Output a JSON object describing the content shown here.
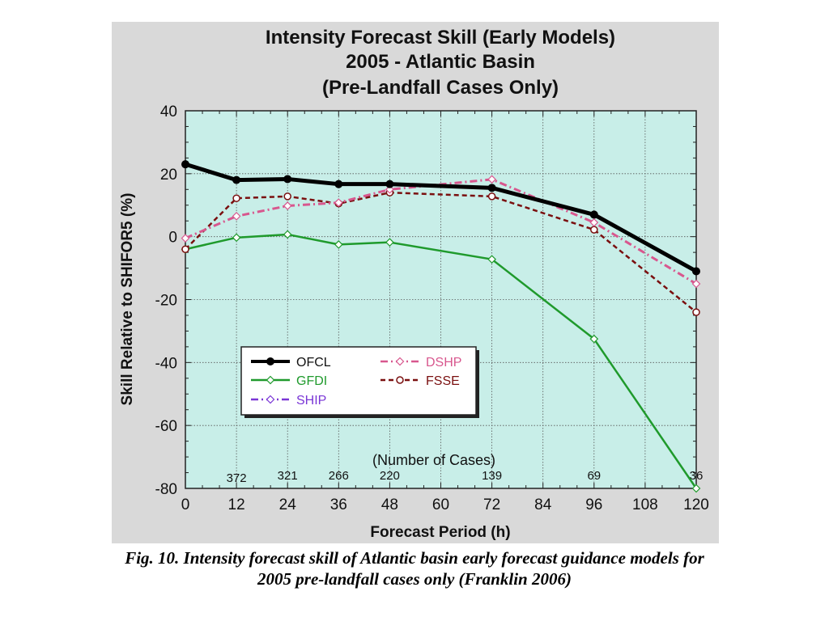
{
  "chart_data": {
    "type": "line",
    "title": [
      "Intensity Forecast Skill (Early Models)",
      "2005 - Atlantic Basin",
      "(Pre-Landfall Cases Only)"
    ],
    "xlabel": "Forecast Period (h)",
    "ylabel": "Skill Relative to SHIFOR5 (%)",
    "xlim": [
      0,
      120
    ],
    "ylim": [
      -80,
      40
    ],
    "xticks": [
      0,
      12,
      24,
      36,
      48,
      60,
      72,
      84,
      96,
      108,
      120
    ],
    "yticks": [
      40,
      20,
      0,
      -20,
      -40,
      -60,
      -80
    ],
    "grid": true,
    "legend_position": "lower-left",
    "cases_label": "(Number of Cases)",
    "cases": [
      {
        "x": 12,
        "n": "372"
      },
      {
        "x": 24,
        "n": "321"
      },
      {
        "x": 36,
        "n": "266"
      },
      {
        "x": 48,
        "n": "220"
      },
      {
        "x": 72,
        "n": "139"
      },
      {
        "x": 96,
        "n": "69"
      },
      {
        "x": 120,
        "n": "36"
      }
    ],
    "series": [
      {
        "name": "OFCL",
        "color": "#000000",
        "style": "solid",
        "marker": "filled-circle",
        "x": [
          0,
          12,
          24,
          36,
          48,
          72,
          96,
          120
        ],
        "values": [
          23,
          18,
          18.3,
          16.7,
          16.7,
          15.5,
          7,
          -11
        ]
      },
      {
        "name": "GFDI",
        "color": "#1f9a2c",
        "style": "solid",
        "marker": "open-diamond",
        "x": [
          0,
          12,
          24,
          36,
          48,
          72,
          96,
          120
        ],
        "values": [
          -4,
          -0.3,
          0.7,
          -2.5,
          -1.8,
          -7.2,
          -32.5,
          -80
        ]
      },
      {
        "name": "SHIP",
        "color": "#7a36d6",
        "style": "dash-dot",
        "marker": "open-diamond",
        "x": [],
        "values": []
      },
      {
        "name": "DSHP",
        "color": "#d8578e",
        "style": "dash-dot",
        "marker": "open-diamond",
        "x": [
          0,
          12,
          24,
          36,
          48,
          72,
          96,
          120
        ],
        "values": [
          -0.5,
          6.5,
          9.8,
          10.8,
          15,
          18.2,
          4.5,
          -15
        ]
      },
      {
        "name": "FSSE",
        "color": "#7a0f0f",
        "style": "dashed",
        "marker": "open-circle",
        "x": [
          0,
          12,
          24,
          36,
          48,
          72,
          96,
          120
        ],
        "values": [
          -4,
          12.2,
          12.8,
          10.5,
          14,
          12.8,
          2.2,
          -24
        ]
      }
    ],
    "colors": {
      "plot_background": "#c8eee8",
      "panel_background": "#d9d9d9"
    }
  },
  "caption": {
    "line1": "Fig. 10. Intensity forecast skill of Atlantic basin early forecast guidance models for",
    "line2": "2005 pre-landfall cases only (Franklin 2006)"
  }
}
